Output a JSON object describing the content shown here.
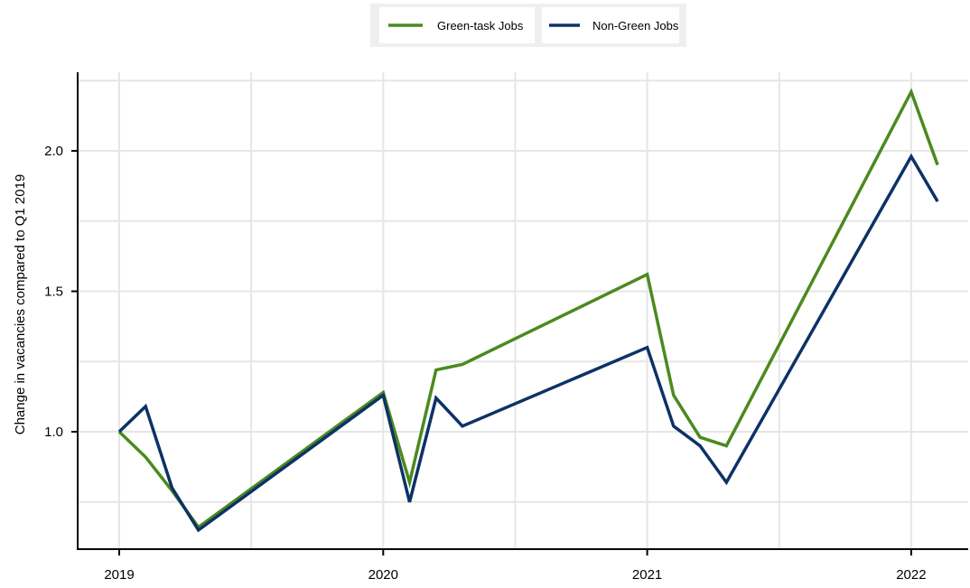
{
  "chart_data": {
    "type": "line",
    "title": "",
    "xlabel": "",
    "ylabel": "Change in vacancies compared to Q1 2019",
    "x_ticks": [
      "2019",
      "2020",
      "2021",
      "2022"
    ],
    "y_ticks": [
      "1.0",
      "1.5",
      "2.0"
    ],
    "xlim": [
      2019,
      2022.1
    ],
    "ylim": [
      0.78,
      2.28
    ],
    "grid": true,
    "legend": {
      "placement": "top-center"
    },
    "x": [
      2019.0,
      2019.1,
      2019.2,
      2019.3,
      2020.0,
      2020.1,
      2020.2,
      2020.3,
      2021.0,
      2021.1,
      2021.2,
      2021.3,
      2022.0,
      2022.1
    ],
    "series": [
      {
        "name": "Green-task Jobs",
        "color": "#4b8a1f",
        "values": [
          1.0,
          0.91,
          0.79,
          0.66,
          1.14,
          0.82,
          1.22,
          1.24,
          1.56,
          1.13,
          0.98,
          0.95,
          2.21,
          1.95
        ]
      },
      {
        "name": "Non-Green Jobs",
        "color": "#0c3266",
        "values": [
          1.0,
          1.09,
          0.8,
          0.65,
          1.13,
          0.75,
          1.12,
          1.02,
          1.3,
          1.02,
          0.95,
          0.82,
          1.98,
          1.82
        ]
      }
    ]
  }
}
